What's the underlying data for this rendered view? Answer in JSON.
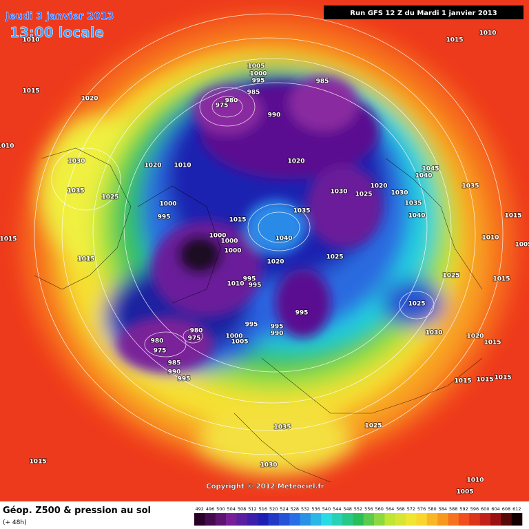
{
  "header": {
    "date": "Jeudi 3 janvier 2013",
    "time": "13:00 locale",
    "run": "Run GFS 12 Z du Mardi 1 janvier 2013"
  },
  "copyright": "Copyright © 2012 Meteociel.fr",
  "footer": {
    "title": "Géop. Z500 & pression au sol",
    "lead": "(+ 48h)"
  },
  "scale": [
    492,
    496,
    500,
    504,
    508,
    512,
    516,
    520,
    524,
    528,
    532,
    536,
    540,
    544,
    548,
    552,
    556,
    560,
    564,
    568,
    572,
    576,
    580,
    584,
    588,
    592,
    596,
    600,
    604,
    608,
    612
  ],
  "isobars": [
    1010,
    1015,
    1020,
    1010,
    1030,
    1035,
    1025,
    1015,
    1015,
    1020,
    1010,
    1000,
    995,
    1005,
    1000,
    995,
    985,
    980,
    975,
    990,
    985,
    1020,
    1030,
    1025,
    1020,
    1030,
    1035,
    1040,
    1045,
    1040,
    1035,
    1015,
    1010,
    1005,
    1015,
    1025,
    1025,
    1030,
    1020,
    1015,
    1035,
    1040,
    1020,
    1025,
    1015,
    1000,
    1000,
    1000,
    995,
    995,
    1010,
    995,
    995,
    990,
    995,
    1000,
    1005,
    980,
    975,
    980,
    975,
    985,
    990,
    995,
    1015,
    1015,
    1015,
    1025,
    1035,
    1030,
    1015,
    1010,
    1005,
    1015,
    1010
  ]
}
